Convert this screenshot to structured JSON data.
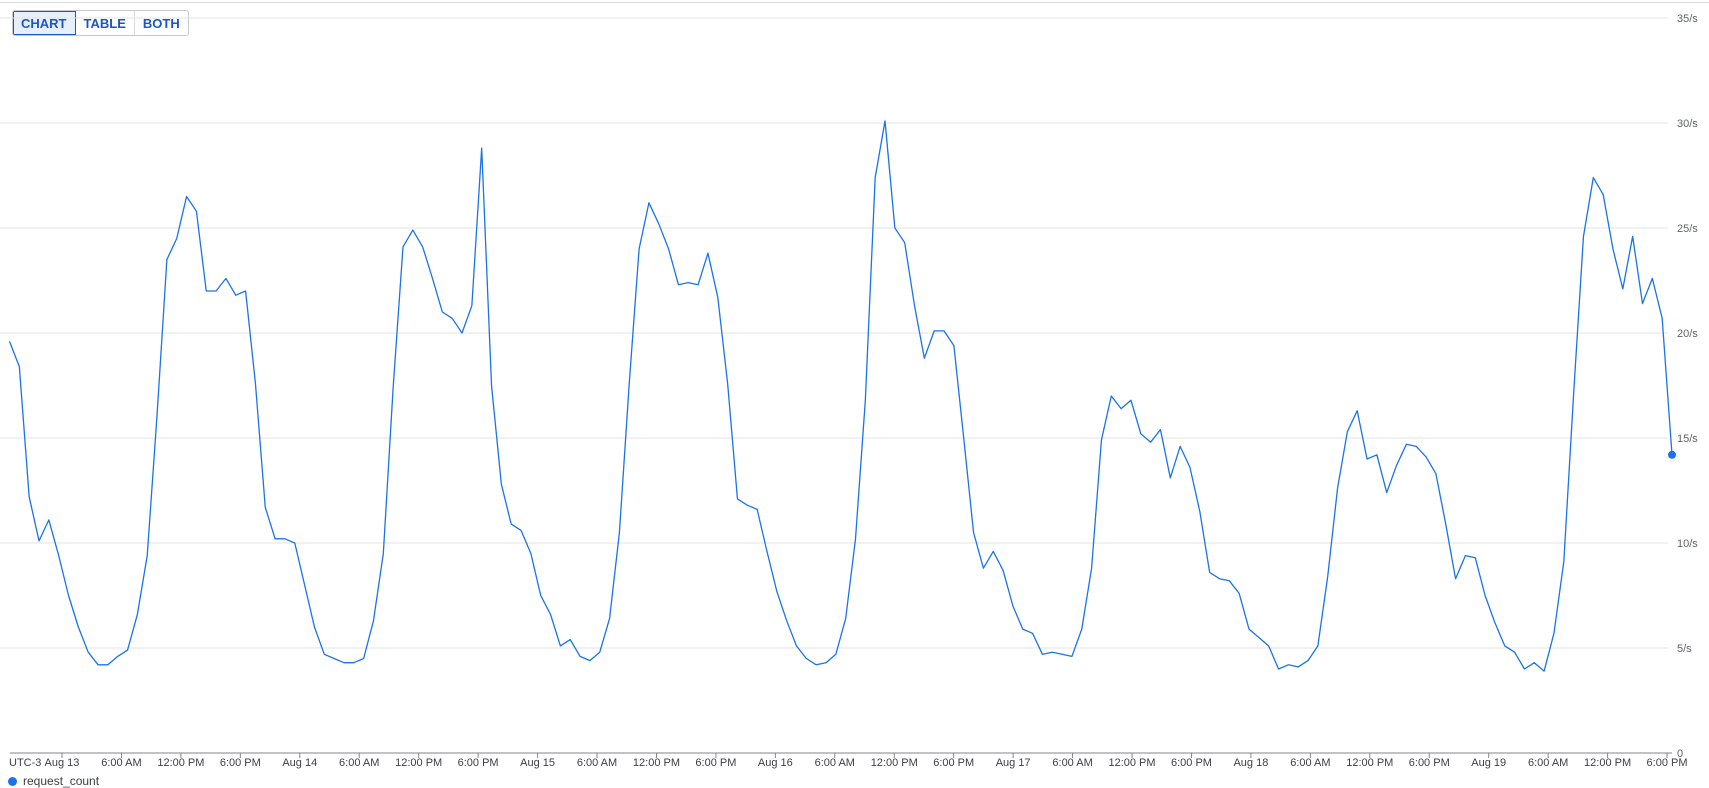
{
  "view_toggle": {
    "options": [
      "CHART",
      "TABLE",
      "BOTH"
    ],
    "selected": "CHART"
  },
  "chart_data": {
    "type": "line",
    "timezone_label": "UTC-3",
    "x_domain": [
      "Aug 12 18:30",
      "Aug 19 18:30"
    ],
    "x_tick_labels": [
      "Aug 13",
      "6:00 AM",
      "12:00 PM",
      "6:00 PM",
      "Aug 14",
      "6:00 AM",
      "12:00 PM",
      "6:00 PM",
      "Aug 15",
      "6:00 AM",
      "12:00 PM",
      "6:00 PM",
      "Aug 16",
      "6:00 AM",
      "12:00 PM",
      "6:00 PM",
      "Aug 17",
      "6:00 AM",
      "12:00 PM",
      "6:00 PM",
      "Aug 18",
      "6:00 AM",
      "12:00 PM",
      "6:00 PM",
      "Aug 19",
      "6:00 AM",
      "12:00 PM",
      "6:00 PM"
    ],
    "y_ticks": [
      0,
      5,
      10,
      15,
      20,
      25,
      30,
      35
    ],
    "y_tick_labels": [
      "0",
      "5/s",
      "10/s",
      "15/s",
      "20/s",
      "25/s",
      "30/s",
      "35/s"
    ],
    "ylim": [
      0,
      35
    ],
    "grid": true,
    "y_axis_position": "right",
    "color": "#1a73e8",
    "series": [
      {
        "name": "request_count",
        "values": [
          19.6,
          18.4,
          12.2,
          10.1,
          11.1,
          9.4,
          7.5,
          6.0,
          4.8,
          4.2,
          4.2,
          4.6,
          4.9,
          6.6,
          9.4,
          16.1,
          23.5,
          24.5,
          26.5,
          25.8,
          22.0,
          22.0,
          22.6,
          21.8,
          22.0,
          17.6,
          11.7,
          10.2,
          10.2,
          10.0,
          8.0,
          6.0,
          4.7,
          4.5,
          4.3,
          4.3,
          4.5,
          6.3,
          9.5,
          17.4,
          24.1,
          24.9,
          24.1,
          22.6,
          21.0,
          20.7,
          20.0,
          21.3,
          28.8,
          17.5,
          12.8,
          10.9,
          10.6,
          9.5,
          7.5,
          6.6,
          5.1,
          5.4,
          4.6,
          4.4,
          4.8,
          6.4,
          10.5,
          17.6,
          24.0,
          26.2,
          25.2,
          24.0,
          22.3,
          22.4,
          22.3,
          23.8,
          21.7,
          17.6,
          12.1,
          11.8,
          11.6,
          9.6,
          7.7,
          6.3,
          5.1,
          4.5,
          4.2,
          4.3,
          4.7,
          6.4,
          10.2,
          16.8,
          27.4,
          30.1,
          25.0,
          24.3,
          21.3,
          18.8,
          20.1,
          20.1,
          19.4,
          15.0,
          10.5,
          8.8,
          9.6,
          8.7,
          7.0,
          5.9,
          5.7,
          4.7,
          4.8,
          4.7,
          4.6,
          5.9,
          8.8,
          14.9,
          17.0,
          16.4,
          16.8,
          15.2,
          14.8,
          15.4,
          13.1,
          14.6,
          13.6,
          11.5,
          8.6,
          8.3,
          8.2,
          7.6,
          5.9,
          5.5,
          5.1,
          4.0,
          4.2,
          4.1,
          4.4,
          5.1,
          8.4,
          12.6,
          15.3,
          16.3,
          14.0,
          14.2,
          12.4,
          13.7,
          14.7,
          14.6,
          14.1,
          13.3,
          10.9,
          8.3,
          9.4,
          9.3,
          7.5,
          6.2,
          5.1,
          4.8,
          4.0,
          4.3,
          3.9,
          5.7,
          9.1,
          17.1,
          24.6,
          27.4,
          26.6,
          24.0,
          22.1,
          24.6,
          21.4,
          22.6,
          20.7,
          14.2
        ]
      }
    ]
  }
}
